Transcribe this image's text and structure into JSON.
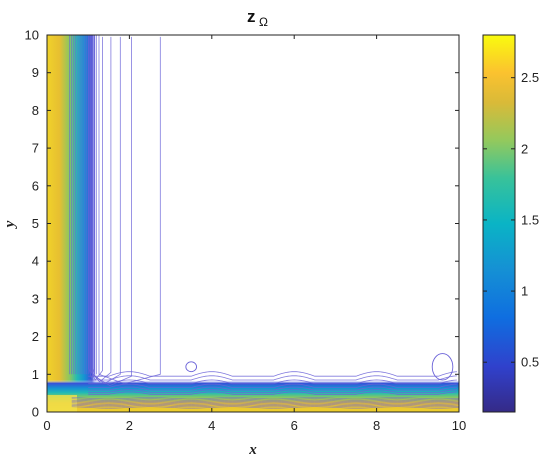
{
  "chart_data": {
    "type": "contour",
    "title_main": "z",
    "title_subscript": "Ω",
    "xlabel": "x",
    "ylabel": "y",
    "xlim": [
      0,
      10
    ],
    "ylim": [
      0,
      10
    ],
    "x_ticks": [
      "0",
      "2",
      "4",
      "6",
      "8",
      "10"
    ],
    "y_ticks": [
      "0",
      "1",
      "2",
      "3",
      "4",
      "5",
      "6",
      "7",
      "8",
      "9",
      "10"
    ],
    "colorbar": {
      "range": [
        0.15,
        2.8
      ],
      "ticks": [
        "0.5",
        "1",
        "1.5",
        "2",
        "2.5"
      ],
      "tick_values": [
        0.5,
        1,
        1.5,
        2,
        2.5
      ],
      "colormap": "parula"
    },
    "field": "L-shaped: high values (~2.8) along x=0 and y=0 boundaries, decaying to ~0.15 away from them, with periodic bumps along the bottom band and small closed contours near (3.5, 1.2) and (9.6, 1.2)",
    "grid": false,
    "colors": {
      "parula_dark": "#352a87",
      "parula_blue": "#0f5cdd",
      "parula_cyan": "#12bed5",
      "parula_green": "#6ccb5f",
      "parula_yellow": "#f9fb0e",
      "contour_line": "#6b63d8"
    }
  }
}
